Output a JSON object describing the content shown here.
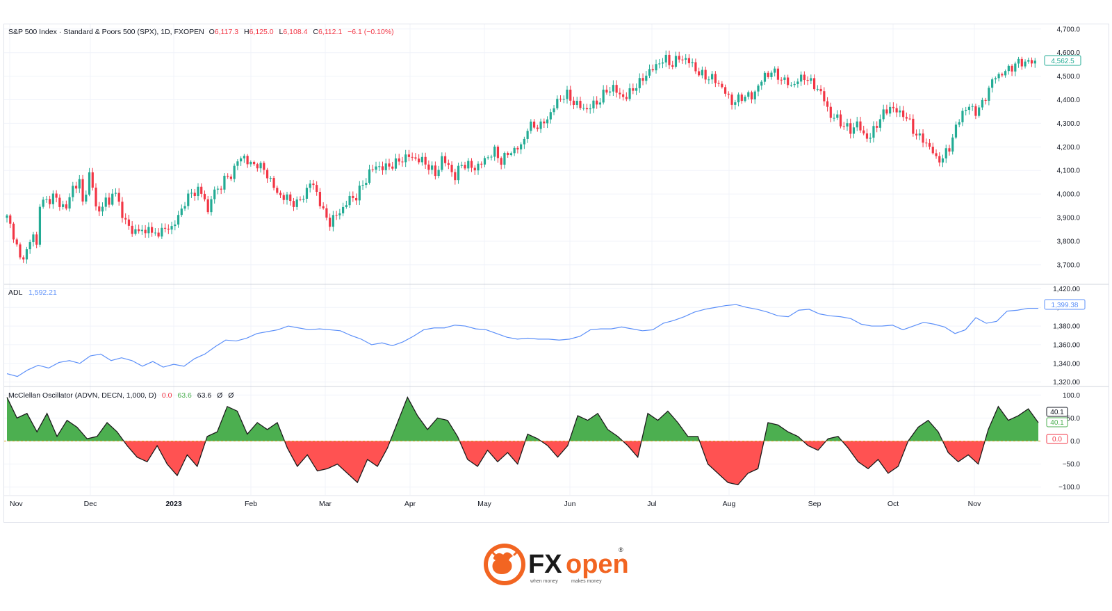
{
  "colors": {
    "up": "#22ab94",
    "down": "#f23645",
    "adl_line": "#5b8ff9",
    "osc_pos_fill": "#4caf50",
    "osc_neg_fill": "#ff5252",
    "grid": "#f0f3fa",
    "text": "#131722",
    "brand_orange": "#f26522",
    "brand_dark": "#1a1a1a"
  },
  "header": {
    "symbol": "S&P 500 Index · Standard & Poors 500 (SPX), 1D, FXOPEN",
    "o_label": "O",
    "o_value": "6,117.3",
    "h_label": "H",
    "h_value": "6,125.0",
    "l_label": "L",
    "l_value": "6,108.4",
    "c_label": "C",
    "c_value": "6,112.1",
    "change": "−6.1 (−0.10%)"
  },
  "adl_header": {
    "name": "ADL",
    "value": "1,592.21"
  },
  "osc_header": {
    "name": "McClellan Oscillator (ADVN, DECN, 1,000, D)",
    "v1": "0.0",
    "v2": "63.6",
    "v3": "63.6",
    "v4": "Ø",
    "v5": "Ø"
  },
  "price_badge": "4,562.5",
  "adl_badge": "1,399.38",
  "osc_badges": {
    "black": "40.1",
    "green": "40.1",
    "red": "0.0"
  },
  "x_axis_labels": [
    "Nov",
    "Dec",
    "2023",
    "Feb",
    "Mar",
    "Apr",
    "May",
    "Jun",
    "Jul",
    "Aug",
    "Sep",
    "Oct",
    "Nov"
  ],
  "chart_data": [
    {
      "type": "candlestick",
      "title": "S&P 500 Index · Standard & Poors 500 (SPX), 1D, FXOPEN",
      "ylim": [
        3620,
        4720
      ],
      "y_ticks": [
        "3,700.0",
        "3,800.0",
        "3,900.0",
        "4,000.0",
        "4,100.0",
        "4,200.0",
        "4,300.0",
        "4,400.0",
        "4,500.0",
        "4,600.0",
        "4,700.0"
      ],
      "y_tick_values": [
        3700,
        3800,
        3900,
        4000,
        4100,
        4200,
        4300,
        4400,
        4500,
        4600,
        4700
      ],
      "close_path": [
        [
          0,
          3900
        ],
        [
          2,
          3830
        ],
        [
          4,
          3720
        ],
        [
          6,
          3760
        ],
        [
          8,
          3830
        ],
        [
          9,
          3780
        ],
        [
          10,
          3960
        ],
        [
          12,
          3970
        ],
        [
          14,
          3990
        ],
        [
          16,
          3960
        ],
        [
          18,
          3940
        ],
        [
          20,
          4030
        ],
        [
          22,
          4050
        ],
        [
          23,
          3960
        ],
        [
          25,
          4080
        ],
        [
          27,
          3960
        ],
        [
          28,
          3920
        ],
        [
          30,
          3980
        ],
        [
          31,
          3950
        ],
        [
          32,
          4020
        ],
        [
          34,
          3960
        ],
        [
          36,
          3880
        ],
        [
          38,
          3840
        ],
        [
          40,
          3850
        ],
        [
          42,
          3830
        ],
        [
          43,
          3880
        ],
        [
          44,
          3820
        ],
        [
          46,
          3840
        ],
        [
          48,
          3850
        ],
        [
          50,
          3860
        ],
        [
          52,
          3900
        ],
        [
          54,
          3970
        ],
        [
          56,
          4000
        ],
        [
          58,
          4020
        ],
        [
          60,
          3980
        ],
        [
          61,
          3920
        ],
        [
          62,
          3990
        ],
        [
          64,
          4020
        ],
        [
          66,
          4060
        ],
        [
          68,
          4080
        ],
        [
          70,
          4140
        ],
        [
          72,
          4160
        ],
        [
          74,
          4120
        ],
        [
          76,
          4130
        ],
        [
          78,
          4100
        ],
        [
          80,
          4060
        ],
        [
          82,
          4000
        ],
        [
          84,
          3990
        ],
        [
          86,
          3970
        ],
        [
          88,
          3960
        ],
        [
          90,
          3990
        ],
        [
          92,
          4050
        ],
        [
          94,
          4010
        ],
        [
          96,
          3920
        ],
        [
          98,
          3880
        ],
        [
          100,
          3910
        ],
        [
          102,
          3940
        ],
        [
          104,
          3980
        ],
        [
          106,
          3990
        ],
        [
          108,
          4040
        ],
        [
          110,
          4090
        ],
        [
          112,
          4120
        ],
        [
          114,
          4110
        ],
        [
          116,
          4120
        ],
        [
          118,
          4130
        ],
        [
          120,
          4150
        ],
        [
          122,
          4160
        ],
        [
          124,
          4150
        ],
        [
          126,
          4140
        ],
        [
          128,
          4120
        ],
        [
          130,
          4080
        ],
        [
          132,
          4150
        ],
        [
          134,
          4120
        ],
        [
          136,
          4070
        ],
        [
          138,
          4130
        ],
        [
          140,
          4120
        ],
        [
          142,
          4110
        ],
        [
          144,
          4130
        ],
        [
          146,
          4160
        ],
        [
          148,
          4180
        ],
        [
          150,
          4140
        ],
        [
          152,
          4170
        ],
        [
          154,
          4190
        ],
        [
          156,
          4200
        ],
        [
          158,
          4280
        ],
        [
          160,
          4290
        ],
        [
          162,
          4290
        ],
        [
          164,
          4320
        ],
        [
          166,
          4370
        ],
        [
          168,
          4410
        ],
        [
          170,
          4420
        ],
        [
          172,
          4390
        ],
        [
          174,
          4370
        ],
        [
          176,
          4360
        ],
        [
          178,
          4380
        ],
        [
          180,
          4400
        ],
        [
          182,
          4440
        ],
        [
          184,
          4450
        ],
        [
          186,
          4420
        ],
        [
          188,
          4410
        ],
        [
          190,
          4450
        ],
        [
          192,
          4470
        ],
        [
          194,
          4510
        ],
        [
          196,
          4530
        ],
        [
          198,
          4560
        ],
        [
          200,
          4570
        ],
        [
          202,
          4550
        ],
        [
          204,
          4580
        ],
        [
          206,
          4570
        ],
        [
          208,
          4550
        ],
        [
          210,
          4510
        ],
        [
          212,
          4500
        ],
        [
          214,
          4490
        ],
        [
          216,
          4470
        ],
        [
          218,
          4430
        ],
        [
          220,
          4390
        ],
        [
          222,
          4400
        ],
        [
          224,
          4420
        ],
        [
          226,
          4410
        ],
        [
          228,
          4460
        ],
        [
          230,
          4500
        ],
        [
          232,
          4520
        ],
        [
          234,
          4500
        ],
        [
          236,
          4480
        ],
        [
          238,
          4460
        ],
        [
          240,
          4480
        ],
        [
          242,
          4500
        ],
        [
          244,
          4470
        ],
        [
          246,
          4450
        ],
        [
          248,
          4400
        ],
        [
          250,
          4330
        ],
        [
          252,
          4320
        ],
        [
          254,
          4290
        ],
        [
          256,
          4270
        ],
        [
          258,
          4300
        ],
        [
          260,
          4250
        ],
        [
          262,
          4240
        ],
        [
          264,
          4300
        ],
        [
          266,
          4340
        ],
        [
          268,
          4370
        ],
        [
          270,
          4350
        ],
        [
          272,
          4340
        ],
        [
          274,
          4300
        ],
        [
          276,
          4250
        ],
        [
          278,
          4230
        ],
        [
          280,
          4200
        ],
        [
          282,
          4150
        ],
        [
          284,
          4150
        ],
        [
          286,
          4200
        ],
        [
          288,
          4280
        ],
        [
          290,
          4350
        ],
        [
          292,
          4370
        ],
        [
          294,
          4350
        ],
        [
          296,
          4380
        ],
        [
          298,
          4450
        ],
        [
          300,
          4500
        ],
        [
          302,
          4510
        ],
        [
          304,
          4530
        ],
        [
          306,
          4550
        ],
        [
          308,
          4560
        ],
        [
          310,
          4560
        ],
        [
          312,
          4560
        ]
      ]
    },
    {
      "type": "line",
      "name": "ADL",
      "ylim": [
        1316,
        1424
      ],
      "y_ticks": [
        "1,320.00",
        "1,340.00",
        "1,360.00",
        "1,380.00",
        "1,400.00",
        "1,420.00"
      ],
      "y_tick_values": [
        1320,
        1340,
        1360,
        1380,
        1400,
        1420
      ],
      "values": [
        1329,
        1326,
        1333,
        1338,
        1335,
        1341,
        1343,
        1340,
        1348,
        1350,
        1343,
        1346,
        1343,
        1337,
        1342,
        1336,
        1339,
        1337,
        1345,
        1350,
        1358,
        1365,
        1364,
        1367,
        1372,
        1374,
        1376,
        1380,
        1378,
        1376,
        1377,
        1376,
        1375,
        1370,
        1366,
        1360,
        1362,
        1359,
        1363,
        1369,
        1376,
        1378,
        1378,
        1381,
        1380,
        1377,
        1376,
        1372,
        1368,
        1366,
        1367,
        1366,
        1366,
        1365,
        1366,
        1369,
        1376,
        1377,
        1377,
        1379,
        1377,
        1375,
        1376,
        1383,
        1386,
        1390,
        1395,
        1398,
        1400,
        1402,
        1403,
        1400,
        1398,
        1395,
        1391,
        1390,
        1397,
        1398,
        1393,
        1391,
        1390,
        1388,
        1382,
        1380,
        1380,
        1381,
        1376,
        1380,
        1384,
        1382,
        1379,
        1372,
        1376,
        1389,
        1383,
        1385,
        1396,
        1397,
        1399,
        1399
      ]
    },
    {
      "type": "area",
      "name": "McClellan Oscillator (ADVN, DECN, 1,000, D)",
      "ylim": [
        -117,
        117
      ],
      "y_ticks": [
        "−100.0",
        "−50.0",
        "0.0",
        "50.0",
        "100.0"
      ],
      "y_tick_values": [
        -100,
        -50,
        0,
        50,
        100
      ],
      "values": [
        95,
        50,
        60,
        20,
        60,
        10,
        45,
        30,
        5,
        10,
        40,
        20,
        -10,
        -35,
        -45,
        -10,
        -50,
        -75,
        -30,
        -55,
        10,
        20,
        75,
        65,
        15,
        40,
        25,
        40,
        -15,
        -55,
        -30,
        -65,
        -60,
        -50,
        -70,
        -90,
        -40,
        -55,
        -15,
        40,
        95,
        55,
        25,
        50,
        45,
        10,
        -40,
        -55,
        -20,
        -45,
        -25,
        -50,
        15,
        5,
        -10,
        -35,
        -10,
        55,
        45,
        60,
        25,
        10,
        -10,
        -35,
        60,
        45,
        65,
        40,
        10,
        10,
        -50,
        -70,
        -90,
        -95,
        -70,
        -60,
        40,
        35,
        20,
        10,
        -10,
        -20,
        5,
        10,
        -15,
        -45,
        -60,
        -40,
        -70,
        -55,
        0,
        30,
        45,
        20,
        -25,
        -45,
        -30,
        -50,
        25,
        75,
        45,
        55,
        70,
        40
      ]
    }
  ],
  "logo": {
    "brand": "FXopen",
    "brand_fx": "FX",
    "brand_open": "open",
    "tagline_left": "when money",
    "tagline_right": "makes money",
    "registered": "®"
  }
}
